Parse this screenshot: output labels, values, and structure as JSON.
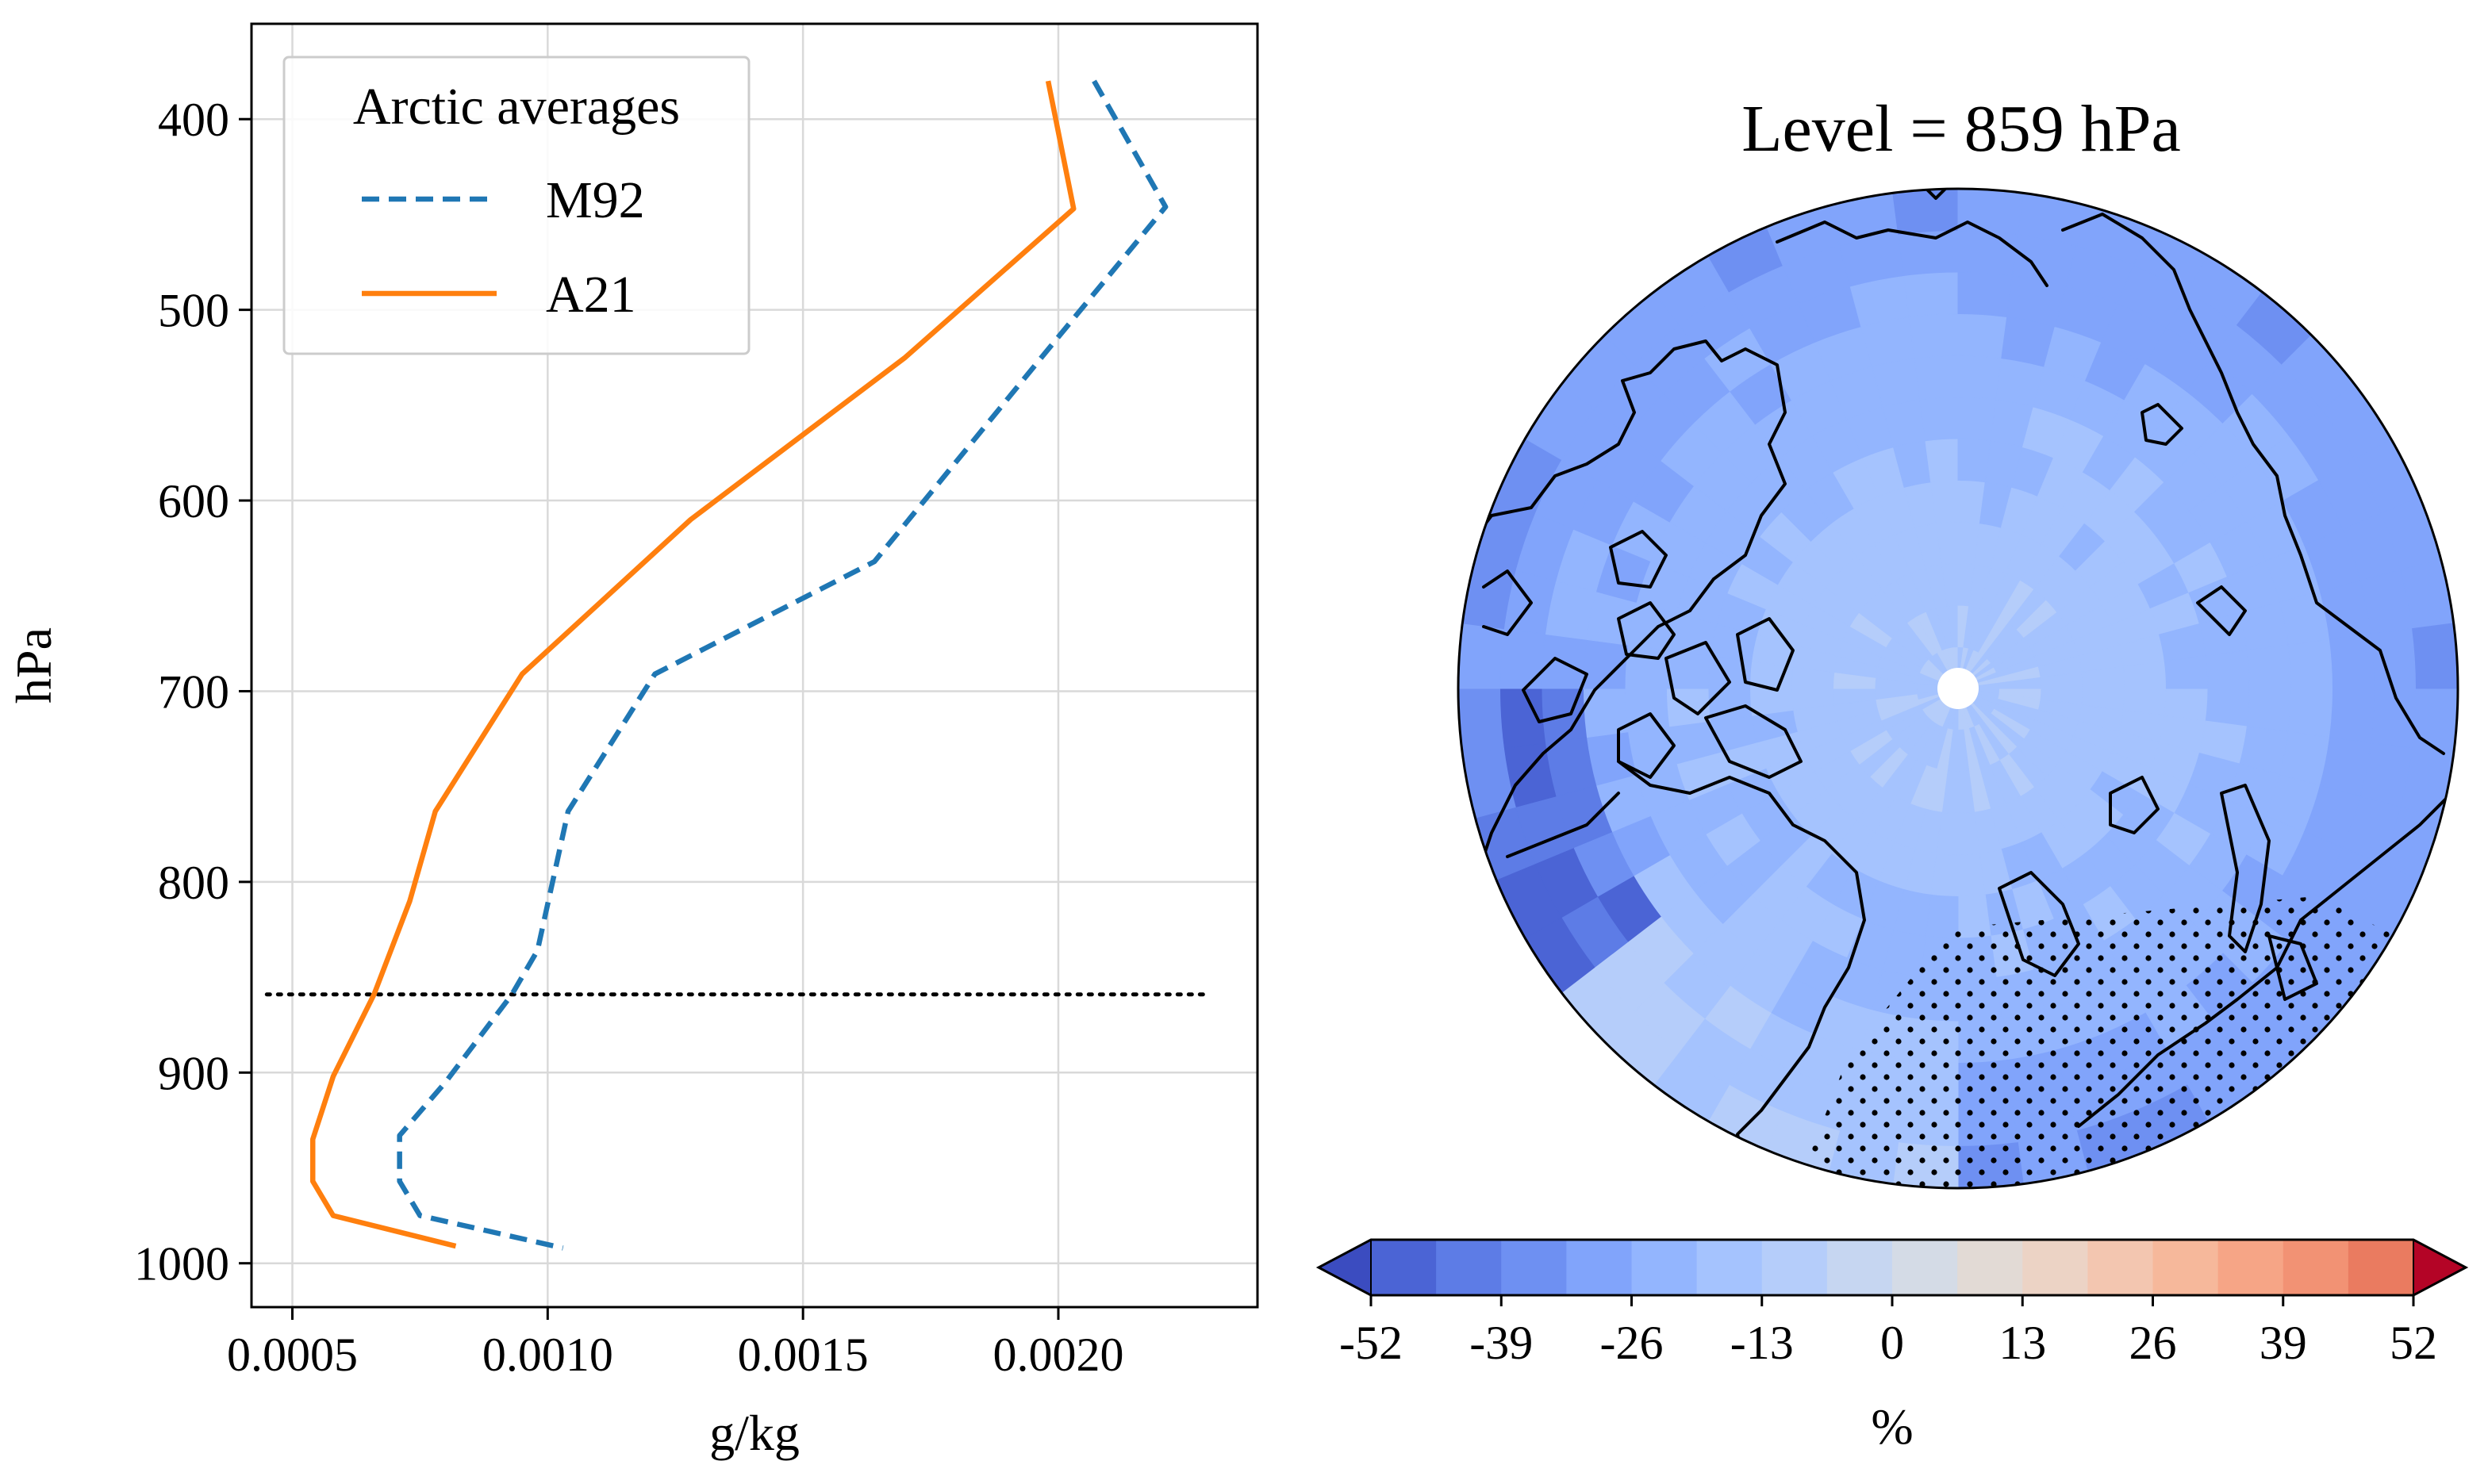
{
  "chart_data": [
    {
      "type": "line",
      "xlabel": "g/kg",
      "ylabel": "hPa",
      "xlim": [
        0.00042,
        0.00239
      ],
      "ylim": [
        1023,
        350
      ],
      "y_inverted": true,
      "grid": true,
      "x_ticks": [
        0.0005,
        0.001,
        0.0015,
        0.002
      ],
      "x_tick_labels": [
        "0.0005",
        "0.0010",
        "0.0015",
        "0.0020"
      ],
      "y_ticks": [
        400,
        500,
        600,
        700,
        800,
        900,
        1000
      ],
      "y_tick_labels": [
        "400",
        "500",
        "600",
        "700",
        "800",
        "900",
        "1000"
      ],
      "legend": {
        "title": "Arctic averages",
        "placement": "top-left"
      },
      "series": [
        {
          "name": "M92",
          "style": "dashed",
          "color": "#1f77b4",
          "points": [
            [
              0.00207,
              380
            ],
            [
              0.00221,
              446
            ],
            [
              0.00197,
              524
            ],
            [
              0.00164,
              632
            ],
            [
              0.00121,
              691
            ],
            [
              0.00104,
              763
            ],
            [
              0.00098,
              836
            ],
            [
              0.00093,
              859
            ],
            [
              0.0008,
              905
            ],
            [
              0.00071,
              933
            ],
            [
              0.00071,
              957
            ],
            [
              0.00075,
              975
            ],
            [
              0.00103,
              992
            ]
          ]
        },
        {
          "name": "A21",
          "style": "solid",
          "color": "#ff7f0e",
          "points": [
            [
              0.00198,
              380
            ],
            [
              0.00203,
              447
            ],
            [
              0.0017,
              525
            ],
            [
              0.00128,
              610
            ],
            [
              0.00095,
              691
            ],
            [
              0.00078,
              763
            ],
            [
              0.00073,
              810
            ],
            [
              0.00066,
              859
            ],
            [
              0.00058,
              902
            ],
            [
              0.00054,
              935
            ],
            [
              0.00054,
              957
            ],
            [
              0.00058,
              975
            ],
            [
              0.00082,
              991
            ]
          ]
        }
      ],
      "reference_line": {
        "y": 859,
        "x_range": [
          0.00045,
          0.00229
        ],
        "style": "dotted",
        "color": "#000000"
      }
    },
    {
      "type": "heatmap",
      "title": "Level = 859 hPa",
      "projection": "north-polar-stereographic",
      "colorbar": {
        "label": "%",
        "min": -52,
        "max": 52,
        "step": 6.5,
        "extend": "both",
        "ticks": [
          -52,
          -39,
          -26,
          -13,
          0,
          13,
          26,
          39,
          52
        ],
        "tick_labels": [
          "-52",
          "-39",
          "-26",
          "-13",
          "0",
          "13",
          "26",
          "39",
          "52"
        ],
        "colormap": "coolwarm",
        "colors": [
          "#3b4cc0",
          "#4b64d5",
          "#5d7ce6",
          "#6e90f2",
          "#81a4fb",
          "#93b5fe",
          "#a5c3fe",
          "#b5cdfa",
          "#c6d6f1",
          "#d4dbe6",
          "#e2dad5",
          "#ecd3c5",
          "#f3c6b0",
          "#f6b89b",
          "#f6a586",
          "#f29274",
          "#ea7b60",
          "#e0654f",
          "#d24b40",
          "#c23532",
          "#b40426"
        ]
      },
      "field_summary": {
        "pole_region_value": -13,
        "outer_ring_value": -33,
        "atlantic_sector_value": -22,
        "min_value": -46,
        "stippled_sector": "north-atlantic / scandinavia"
      }
    }
  ]
}
